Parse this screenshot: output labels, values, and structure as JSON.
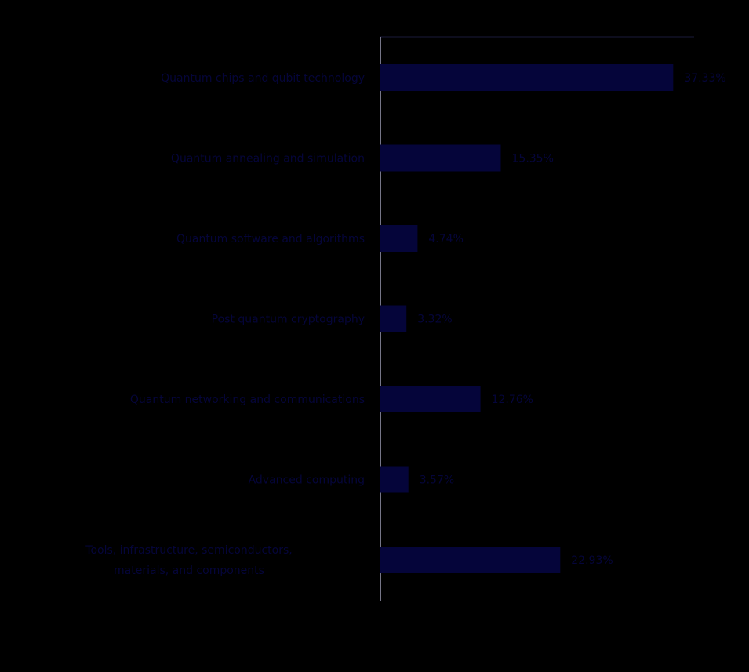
{
  "colors": {
    "background": "#000000",
    "bar": "#05053a",
    "label_text": "#05053a",
    "axis": "#9c9cb4"
  },
  "chart_data": {
    "type": "bar",
    "orientation": "horizontal",
    "categories": [
      "Quantum chips and qubit technology",
      "Quantum annealing and simulation",
      "Quantum software and algorithms",
      "Post quantum cryptography",
      "Quantum networking and communications",
      "Advanced computing",
      "Tools, infrastructure, semiconductors, materials, and components"
    ],
    "values": [
      37.33,
      15.35,
      4.74,
      3.32,
      12.76,
      3.57,
      22.93
    ],
    "value_labels": [
      "37.33%",
      "15.35%",
      "4.74%",
      "3.32%",
      "12.76%",
      "3.57%",
      "22.93%"
    ],
    "xlim": [
      0,
      40
    ],
    "grid": false,
    "legend": "none"
  }
}
